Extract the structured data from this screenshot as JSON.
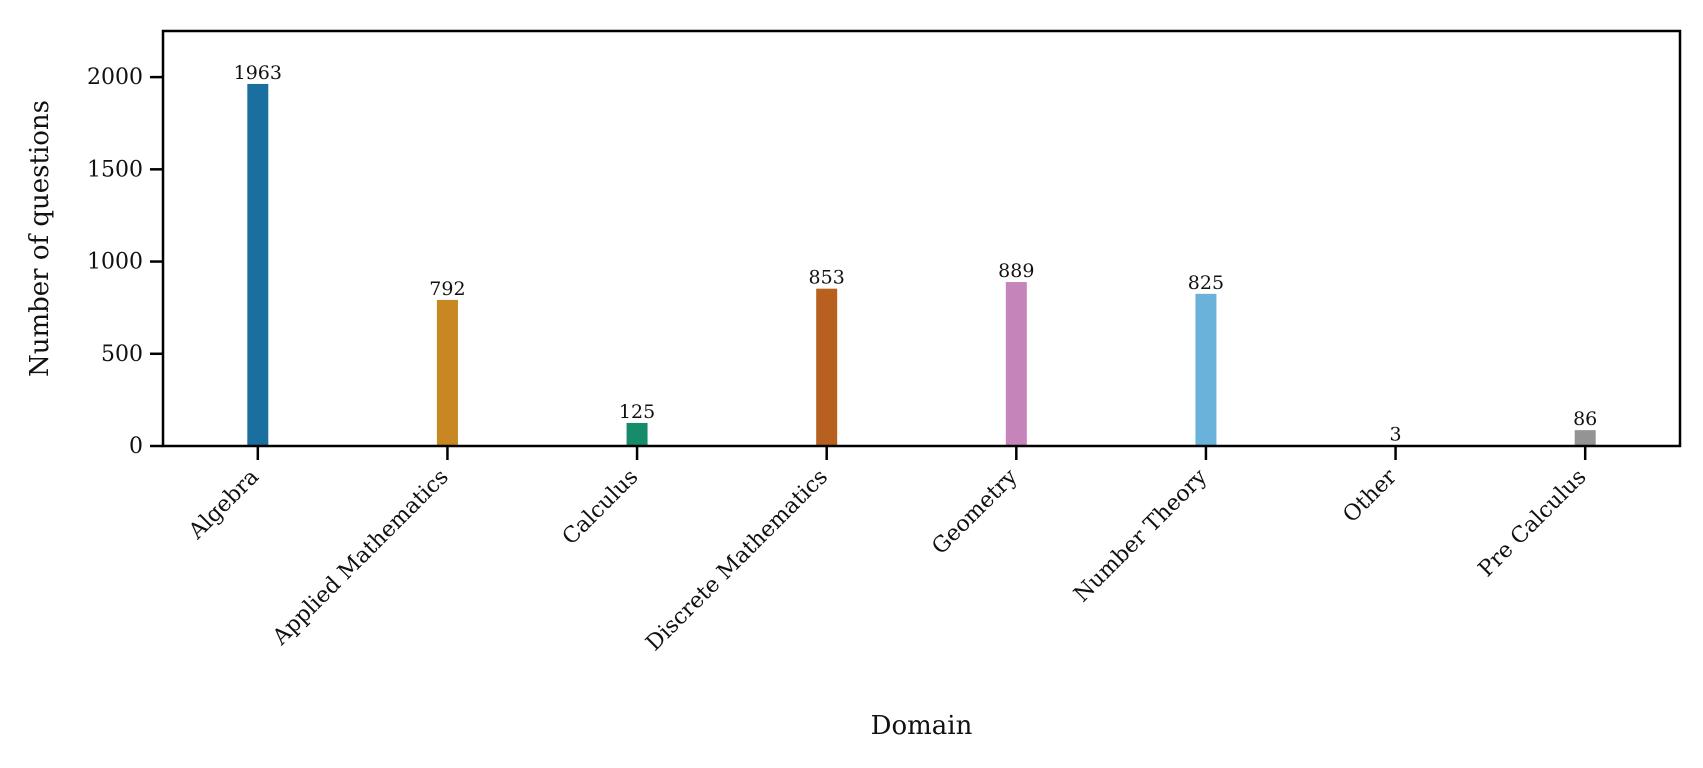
{
  "chart_data": {
    "type": "bar",
    "categories": [
      "Algebra",
      "Applied Mathematics",
      "Calculus",
      "Discrete Mathematics",
      "Geometry",
      "Number Theory",
      "Other",
      "Pre Calculus"
    ],
    "values": [
      1963,
      792,
      125,
      853,
      889,
      825,
      3,
      86
    ],
    "colors": [
      "#1b6f9e",
      "#c88720",
      "#178c6b",
      "#b8601f",
      "#c585ba",
      "#6ab2d9",
      "#f2e34d",
      "#949494"
    ],
    "title": "",
    "xlabel": "Domain",
    "ylabel": "Number of questions",
    "ylim": [
      0,
      2250
    ],
    "yticks": [
      0,
      500,
      1000,
      1500,
      2000
    ],
    "grid": false,
    "data_labels": true
  }
}
